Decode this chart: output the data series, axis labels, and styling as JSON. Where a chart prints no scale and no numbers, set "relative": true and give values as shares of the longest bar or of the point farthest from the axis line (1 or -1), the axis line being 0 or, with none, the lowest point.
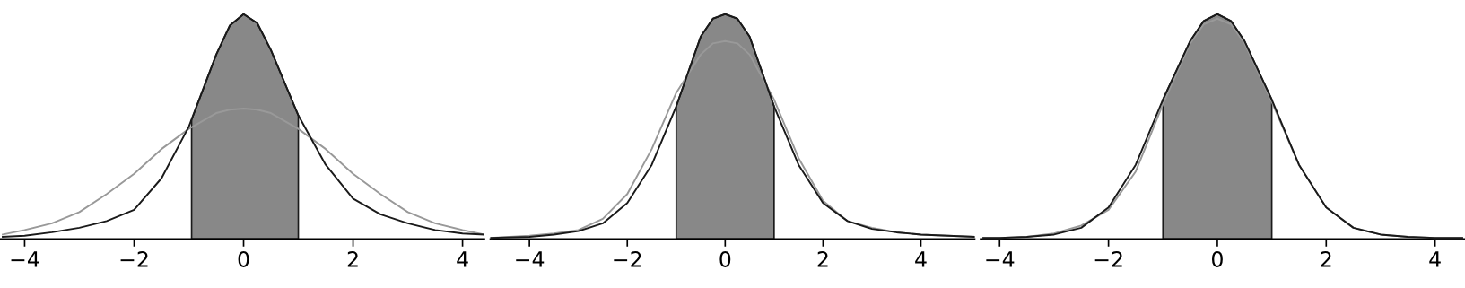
{
  "chart_data": [
    {
      "type": "line",
      "relative": true,
      "tick_labels": "x",
      "grid": false,
      "xlim": [
        -4.45,
        4.4
      ],
      "xticks": [
        -4,
        -2,
        0,
        2,
        4
      ],
      "series": [
        {
          "type": "area",
          "color": "#888888",
          "x": [
            -0.95,
            -0.5,
            -0.25,
            0,
            0.25,
            0.5,
            1
          ],
          "values": [
            0.53,
            0.82,
            0.95,
            1,
            0.96,
            0.84,
            0.55
          ]
        },
        {
          "color": "#999999",
          "x": [
            -4.4,
            -4,
            -3.5,
            -3,
            -2.5,
            -2,
            -1.5,
            -1,
            -0.5,
            -0.25,
            0,
            0.25,
            0.5,
            1,
            1.5,
            2,
            2.5,
            3,
            3.5,
            4,
            4.4
          ],
          "values": [
            0.02,
            0.04,
            0.07,
            0.12,
            0.2,
            0.29,
            0.4,
            0.49,
            0.56,
            0.575,
            0.58,
            0.575,
            0.56,
            0.49,
            0.4,
            0.29,
            0.2,
            0.12,
            0.07,
            0.04,
            0.02
          ]
        },
        {
          "color": "#1a1a1a",
          "x": [
            -4.4,
            -4,
            -3.5,
            -3,
            -2.5,
            -2,
            -1.5,
            -1,
            -0.5,
            -0.25,
            0,
            0.25,
            0.5,
            1,
            1.5,
            2,
            2.5,
            3,
            3.5,
            4,
            4.4
          ],
          "values": [
            0.01,
            0.015,
            0.03,
            0.05,
            0.08,
            0.13,
            0.27,
            0.5,
            0.82,
            0.95,
            1,
            0.96,
            0.84,
            0.55,
            0.33,
            0.18,
            0.11,
            0.07,
            0.04,
            0.025,
            0.02
          ]
        }
      ]
    },
    {
      "type": "line",
      "relative": true,
      "tick_labels": "x",
      "grid": false,
      "xlim": [
        -4.8,
        5.1
      ],
      "xticks": [
        -4,
        -2,
        0,
        2,
        4
      ],
      "series": [
        {
          "type": "area",
          "color": "#888888",
          "x": [
            -1,
            -0.5,
            -0.25,
            0,
            0.25,
            0.5,
            1
          ],
          "values": [
            0.59,
            0.9,
            0.98,
            1,
            0.98,
            0.9,
            0.59
          ]
        },
        {
          "color": "#999999",
          "x": [
            -4.8,
            -4,
            -3.5,
            -3,
            -2.5,
            -2,
            -1.5,
            -1,
            -0.5,
            -0.25,
            0,
            0.25,
            0.5,
            1,
            1.5,
            2,
            2.5,
            3,
            3.5,
            4,
            5.1
          ],
          "values": [
            0.005,
            0.015,
            0.025,
            0.04,
            0.09,
            0.2,
            0.4,
            0.65,
            0.82,
            0.87,
            0.88,
            0.87,
            0.82,
            0.62,
            0.36,
            0.17,
            0.08,
            0.05,
            0.03,
            0.02,
            0.01
          ]
        },
        {
          "color": "#1a1a1a",
          "x": [
            -4.8,
            -4,
            -3.5,
            -3,
            -2.5,
            -2,
            -1.5,
            -1,
            -0.5,
            -0.25,
            0,
            0.25,
            0.5,
            1,
            1.5,
            2,
            2.5,
            3,
            3.5,
            4,
            5.1
          ],
          "values": [
            0.005,
            0.01,
            0.02,
            0.035,
            0.07,
            0.16,
            0.33,
            0.59,
            0.9,
            0.98,
            1,
            0.98,
            0.9,
            0.59,
            0.33,
            0.16,
            0.08,
            0.045,
            0.03,
            0.02,
            0.01
          ]
        }
      ]
    },
    {
      "type": "line",
      "relative": true,
      "tick_labels": "x",
      "grid": false,
      "xlim": [
        -4.35,
        4.55
      ],
      "xticks": [
        -4,
        -2,
        0,
        2,
        4
      ],
      "series": [
        {
          "type": "area",
          "color": "#888888",
          "x": [
            -1,
            -0.5,
            -0.25,
            0,
            0.25,
            0.5,
            1
          ],
          "values": [
            0.62,
            0.88,
            0.97,
            1,
            0.97,
            0.88,
            0.62
          ]
        },
        {
          "color": "#999999",
          "x": [
            -4.3,
            -4,
            -3.5,
            -3,
            -2.5,
            -2,
            -1.5,
            -1,
            -0.5,
            -0.25,
            0,
            0.25,
            0.5,
            1,
            1.5,
            2,
            2.5,
            3,
            3.5,
            4,
            4.5
          ],
          "values": [
            0.005,
            0.005,
            0.01,
            0.025,
            0.06,
            0.13,
            0.3,
            0.6,
            0.87,
            0.955,
            0.98,
            0.955,
            0.87,
            0.61,
            0.33,
            0.14,
            0.05,
            0.02,
            0.01,
            0.005,
            0.005
          ]
        },
        {
          "color": "#1a1a1a",
          "x": [
            -4.3,
            -4,
            -3.5,
            -3,
            -2.5,
            -2,
            -1.5,
            -1,
            -0.5,
            -0.25,
            0,
            0.25,
            0.5,
            1,
            1.5,
            2,
            2.5,
            3,
            3.5,
            4,
            4.5
          ],
          "values": [
            0.005,
            0.005,
            0.01,
            0.02,
            0.05,
            0.14,
            0.33,
            0.62,
            0.88,
            0.97,
            1,
            0.97,
            0.88,
            0.62,
            0.33,
            0.14,
            0.05,
            0.02,
            0.01,
            0.005,
            0.005
          ]
        }
      ]
    }
  ]
}
